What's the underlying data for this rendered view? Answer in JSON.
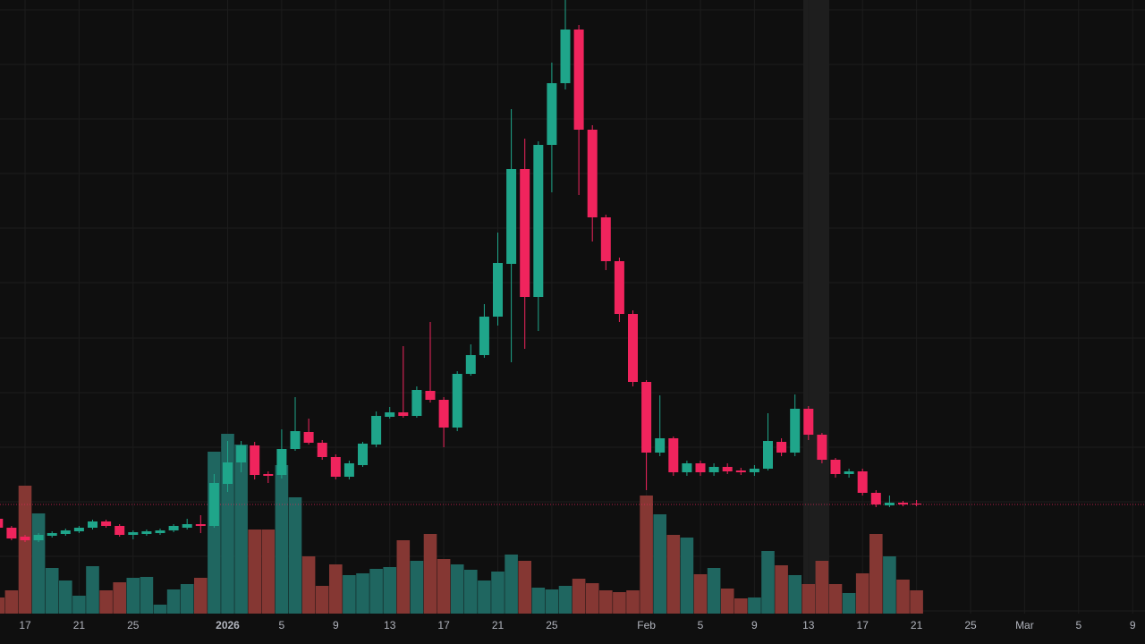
{
  "chart_data": {
    "type": "candlestick",
    "categories": [
      null,
      null,
      "17",
      null,
      null,
      null,
      "21",
      null,
      null,
      null,
      "25",
      null,
      null,
      null,
      null,
      null,
      null,
      "2026",
      null,
      null,
      null,
      "5",
      null,
      null,
      null,
      "9",
      null,
      null,
      null,
      "13",
      null,
      null,
      null,
      "17",
      null,
      null,
      null,
      "21",
      null,
      null,
      null,
      "25",
      null,
      null,
      null,
      null,
      null,
      null,
      "Feb",
      null,
      null,
      null,
      "5",
      null,
      null,
      null,
      "9",
      null,
      null,
      null,
      "13",
      null,
      null,
      null,
      "17",
      null,
      null,
      null,
      "21",
      null,
      null,
      null,
      "25",
      null,
      null,
      null,
      "Mar",
      null,
      null,
      null,
      "5",
      null,
      null,
      null,
      "9"
    ],
    "open": [
      120,
      110,
      100,
      96,
      101,
      103,
      106,
      110,
      117,
      112,
      102,
      103,
      104,
      107,
      110,
      114,
      112,
      159,
      183,
      202,
      170,
      169,
      198,
      217,
      205,
      189,
      167,
      180,
      203,
      234,
      239,
      235,
      263,
      253,
      222,
      282,
      303,
      346,
      405,
      511,
      368,
      538,
      607,
      667,
      555,
      457,
      408,
      349,
      273,
      194,
      210,
      172,
      182,
      172,
      178,
      174,
      172,
      176,
      206,
      194,
      243,
      214,
      186,
      170,
      173,
      149,
      135,
      138,
      137,
      null,
      null,
      null,
      null,
      null,
      null,
      null,
      null,
      null,
      null,
      null,
      null,
      null,
      null,
      null,
      null
    ],
    "high": [
      124,
      112,
      102,
      104,
      106,
      109,
      112,
      119,
      119,
      114,
      107,
      108,
      109,
      114,
      120,
      124,
      170,
      207,
      207,
      206,
      173,
      220,
      256,
      232,
      208,
      192,
      185,
      206,
      240,
      245,
      313,
      268,
      340,
      256,
      285,
      315,
      360,
      440,
      578,
      545,
      542,
      630,
      700,
      672,
      560,
      460,
      412,
      353,
      275,
      258,
      212,
      185,
      185,
      182,
      182,
      177,
      180,
      238,
      210,
      259,
      246,
      216,
      188,
      176,
      176,
      152,
      146,
      140,
      141,
      null,
      null,
      null,
      null,
      null,
      null,
      null,
      null,
      null,
      null,
      null,
      null,
      null,
      null,
      null,
      null
    ],
    "low": [
      106,
      96,
      94,
      94,
      99,
      101,
      104,
      108,
      110,
      100,
      97,
      101,
      102,
      105,
      108,
      104,
      110,
      150,
      172,
      164,
      160,
      165,
      196,
      203,
      186,
      164,
      164,
      178,
      200,
      232,
      233,
      233,
      250,
      200,
      218,
      280,
      300,
      336,
      295,
      310,
      330,
      485,
      600,
      482,
      430,
      398,
      340,
      268,
      152,
      190,
      168,
      168,
      168,
      168,
      170,
      169,
      168,
      174,
      190,
      190,
      208,
      182,
      166,
      166,
      146,
      133,
      133,
      134,
      134,
      null,
      null,
      null,
      null,
      null,
      null,
      null,
      null,
      null,
      null,
      null,
      null,
      null,
      null,
      null,
      null
    ],
    "close": [
      110,
      98,
      96,
      102,
      104,
      107,
      110,
      117,
      112,
      102,
      105,
      106,
      107,
      112,
      114,
      112,
      160,
      183,
      202,
      169,
      168,
      198,
      218,
      205,
      189,
      167,
      182,
      204,
      235,
      239,
      235,
      264,
      253,
      222,
      282,
      303,
      346,
      406,
      511,
      368,
      538,
      607,
      667,
      555,
      457,
      408,
      349,
      273,
      194,
      210,
      172,
      182,
      172,
      178,
      173,
      172,
      176,
      207,
      194,
      243,
      214,
      186,
      170,
      173,
      149,
      136,
      138,
      136,
      136,
      null,
      null,
      null,
      null,
      null,
      null,
      null,
      null,
      null,
      null,
      null,
      null,
      null,
      null,
      null,
      null
    ],
    "volume": [
      18,
      26,
      143,
      112,
      51,
      37,
      20,
      53,
      26,
      35,
      40,
      41,
      10,
      27,
      33,
      40,
      181,
      201,
      189,
      94,
      94,
      166,
      130,
      64,
      31,
      55,
      43,
      45,
      50,
      52,
      82,
      59,
      89,
      61,
      55,
      49,
      37,
      47,
      66,
      59,
      29,
      27,
      31,
      39,
      34,
      26,
      24,
      26,
      132,
      111,
      88,
      85,
      44,
      51,
      28,
      17,
      18,
      70,
      54,
      43,
      33,
      59,
      33,
      23,
      45,
      89,
      64,
      38,
      26,
      null,
      null,
      null,
      null,
      null,
      null,
      null,
      null,
      null,
      null,
      null,
      null,
      null,
      null,
      null,
      null
    ],
    "ylim": [
      0,
      700
    ],
    "volume_ylim": [
      0,
      686
    ],
    "up_color": "#1fa58a",
    "down_color": "#f0245d",
    "volume_up_color": "#1f6660",
    "volume_down_color": "#853733",
    "grid": true,
    "price_line": true
  }
}
